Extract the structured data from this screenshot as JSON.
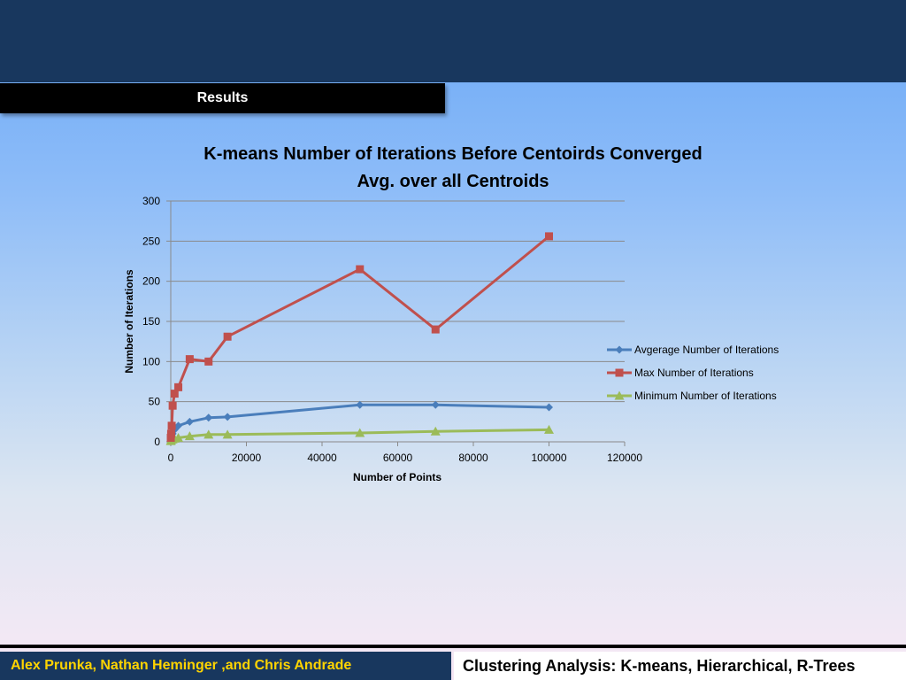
{
  "slide": {
    "section_label": "Results",
    "footer_authors": "Alex Prunka, Nathan Heminger ,and Chris Andrade",
    "footer_title": "Clustering Analysis: K-means, Hierarchical, R-Trees",
    "colors": {
      "top_band": "#18375e",
      "footer_authors_text": "#ffd400"
    }
  },
  "chart_data": {
    "type": "line",
    "title": "K-means Number of Iterations Before Centoirds Converged",
    "subtitle": "Avg. over all Centroids",
    "xlabel": "Number of Points",
    "ylabel": "Number of Iterations",
    "xlim": [
      0,
      120000
    ],
    "ylim": [
      0,
      300
    ],
    "xticks": [
      0,
      20000,
      40000,
      60000,
      80000,
      100000,
      120000
    ],
    "yticks": [
      0,
      50,
      100,
      150,
      200,
      250,
      300
    ],
    "grid": "horizontal",
    "legend_position": "right",
    "series": [
      {
        "name": "Avgerage Number of Iterations",
        "color": "#4a7ebb",
        "marker": "diamond",
        "points": [
          [
            10,
            2
          ],
          [
            100,
            5
          ],
          [
            500,
            10
          ],
          [
            1000,
            15
          ],
          [
            2000,
            20
          ],
          [
            5000,
            25
          ],
          [
            10000,
            30
          ],
          [
            15000,
            31
          ],
          [
            50000,
            46
          ],
          [
            70000,
            46
          ],
          [
            100000,
            43
          ]
        ]
      },
      {
        "name": "Max Number of Iterations",
        "color": "#c0504d",
        "marker": "square",
        "points": [
          [
            10,
            5
          ],
          [
            100,
            10
          ],
          [
            250,
            20
          ],
          [
            500,
            45
          ],
          [
            1000,
            60
          ],
          [
            2000,
            68
          ],
          [
            5000,
            103
          ],
          [
            10000,
            100
          ],
          [
            15000,
            131
          ],
          [
            50000,
            215
          ],
          [
            70000,
            140
          ],
          [
            100000,
            256
          ]
        ]
      },
      {
        "name": "Minimum Number of Iterations",
        "color": "#9bbb59",
        "marker": "triangle",
        "points": [
          [
            10,
            1
          ],
          [
            100,
            2
          ],
          [
            500,
            3
          ],
          [
            1000,
            4
          ],
          [
            2000,
            5
          ],
          [
            5000,
            7
          ],
          [
            10000,
            9
          ],
          [
            15000,
            9
          ],
          [
            50000,
            11
          ],
          [
            70000,
            13
          ],
          [
            100000,
            15
          ]
        ]
      }
    ]
  }
}
